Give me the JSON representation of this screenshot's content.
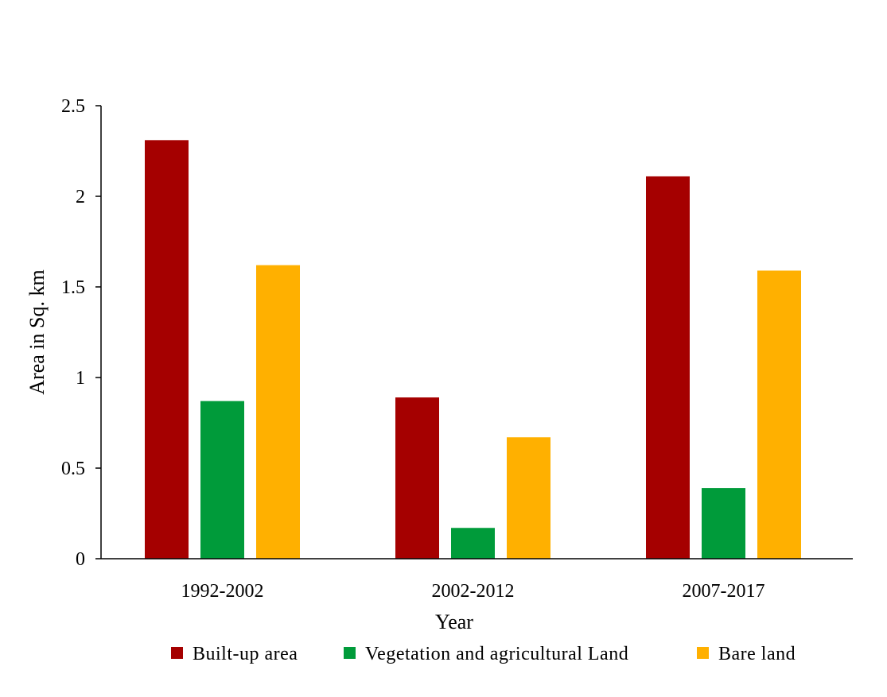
{
  "chart_data": {
    "type": "bar",
    "title": "",
    "xlabel": "Year",
    "ylabel": "Area in Sq. km",
    "categories": [
      "1992-2002",
      "2002-2012",
      "2007-2017"
    ],
    "series": [
      {
        "name": "Built-up area",
        "color": "#A50000",
        "values": [
          2.31,
          0.89,
          2.11
        ]
      },
      {
        "name": "Vegetation and agricultural Land",
        "color": "#009B3A",
        "values": [
          0.87,
          0.17,
          0.39
        ]
      },
      {
        "name": "Bare land",
        "color": "#FFB000",
        "values": [
          1.62,
          0.67,
          1.59
        ]
      }
    ],
    "ylim": [
      0,
      2.5
    ],
    "yticks": [
      "0",
      "0.5",
      "1",
      "1.5",
      "2",
      "2.5"
    ],
    "grid": false,
    "legend_position": "bottom"
  }
}
